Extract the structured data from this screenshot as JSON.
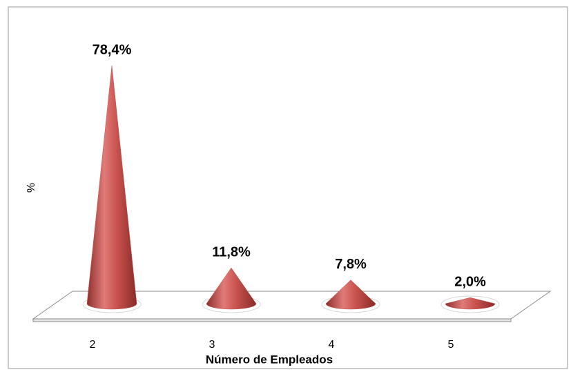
{
  "chart_data": {
    "type": "cone",
    "categories": [
      "2",
      "3",
      "4",
      "5"
    ],
    "values": [
      78.4,
      11.8,
      7.8,
      2.0
    ],
    "value_labels": [
      "78,4%",
      "11,8%",
      "7,8%",
      "2,0%"
    ],
    "xlabel": "Número de Empleados",
    "ylabel": "%",
    "ylim": [
      0,
      80
    ],
    "color": "#c0504d"
  }
}
